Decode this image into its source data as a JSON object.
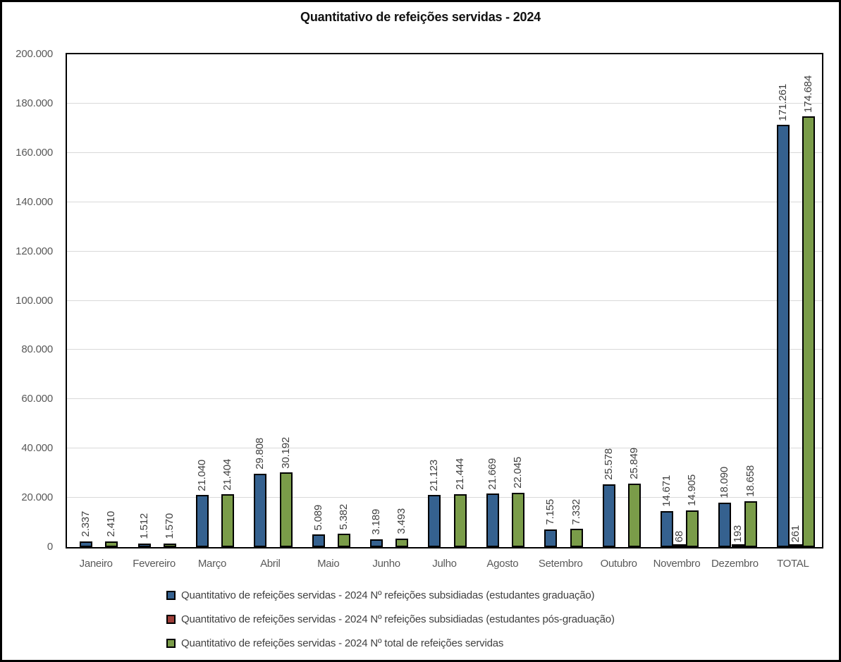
{
  "title": "Quantitativo de refeições servidas - 2024",
  "colors": {
    "series_graduacao": "#35618F",
    "series_pos_graduacao": "#9E3E39",
    "series_total": "#7A9C49",
    "gridline": "#d9d9d9",
    "axis_text": "#595959",
    "bar_label_text": "#404040",
    "border": "#000000"
  },
  "chart_data": {
    "type": "bar",
    "title": "Quantitativo de refeições servidas - 2024",
    "xlabel": "",
    "ylabel": "",
    "ylim": [
      0,
      200000
    ],
    "y_tick_step": 20000,
    "grid": true,
    "legend_position": "bottom",
    "categories": [
      "Janeiro",
      "Fevereiro",
      "Março",
      "Abril",
      "Maio",
      "Junho",
      "Julho",
      "Agosto",
      "Setembro",
      "Outubro",
      "Novembro",
      "Dezembro",
      "TOTAL"
    ],
    "y_axis_tick_labels": [
      "0",
      "20.000",
      "40.000",
      "60.000",
      "80.000",
      "100.000",
      "120.000",
      "140.000",
      "160.000",
      "180.000",
      "200.000"
    ],
    "series": [
      {
        "name": "Quantitativo de refeições servidas - 2024 Nº refeições subsidiadas (estudantes graduação)",
        "color": "#35618F",
        "values": [
          2337,
          1512,
          21040,
          29808,
          5089,
          3189,
          21123,
          21669,
          7155,
          25578,
          14671,
          18090,
          171261
        ],
        "value_labels": [
          "2.337",
          "1.512",
          "21.040",
          "29.808",
          "5.089",
          "3.189",
          "21.123",
          "21.669",
          "7.155",
          "25.578",
          "14.671",
          "18.090",
          "171.261"
        ]
      },
      {
        "name": "Quantitativo de refeições servidas - 2024 Nº refeições subsidiadas (estudantes pós-graduação)",
        "color": "#9E3E39",
        "values": [
          0,
          0,
          0,
          0,
          0,
          0,
          0,
          0,
          0,
          0,
          68,
          193,
          261
        ],
        "value_labels": [
          "",
          "",
          "",
          "",
          "",
          "",
          "",
          "",
          "",
          "",
          "68",
          "193",
          "261"
        ]
      },
      {
        "name": "Quantitativo de refeições servidas - 2024 Nº total de refeições servidas",
        "color": "#7A9C49",
        "values": [
          2410,
          1570,
          21404,
          30192,
          5382,
          3493,
          21444,
          22045,
          7332,
          25849,
          14905,
          18658,
          174684
        ],
        "value_labels": [
          "2.410",
          "1.570",
          "21.404",
          "30.192",
          "5.382",
          "3.493",
          "21.444",
          "22.045",
          "7.332",
          "25.849",
          "14.905",
          "18.658",
          "174.684"
        ]
      }
    ]
  },
  "legend": {
    "items": [
      {
        "label": "Quantitativo de refeições servidas - 2024 Nº refeições subsidiadas (estudantes graduação)",
        "color": "#35618F"
      },
      {
        "label": "Quantitativo de refeições servidas - 2024 Nº refeições subsidiadas (estudantes pós-graduação)",
        "color": "#9E3E39"
      },
      {
        "label": "Quantitativo de refeições servidas - 2024 Nº total de refeições servidas",
        "color": "#7A9C49"
      }
    ]
  }
}
